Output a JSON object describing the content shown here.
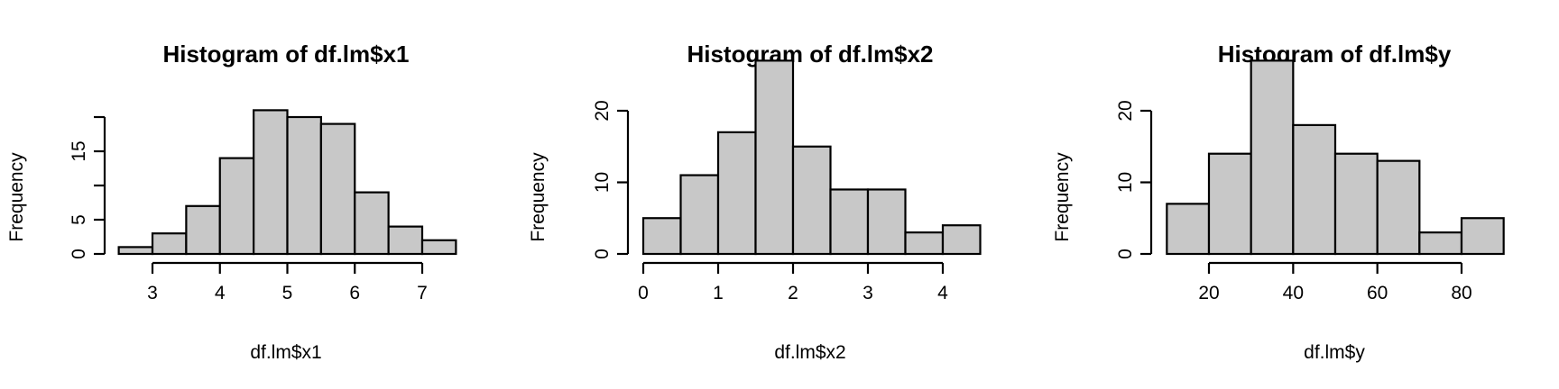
{
  "chart_data": [
    {
      "type": "bar",
      "title": "Histogram of df.lm$x1",
      "xlabel": "df.lm$x1",
      "ylabel": "Frequency",
      "bins": [
        {
          "from": 2.5,
          "to": 3.0,
          "count": 1
        },
        {
          "from": 3.0,
          "to": 3.5,
          "count": 3
        },
        {
          "from": 3.5,
          "to": 4.0,
          "count": 7
        },
        {
          "from": 4.0,
          "to": 4.5,
          "count": 14
        },
        {
          "from": 4.5,
          "to": 5.0,
          "count": 21
        },
        {
          "from": 5.0,
          "to": 5.5,
          "count": 20
        },
        {
          "from": 5.5,
          "to": 6.0,
          "count": 19
        },
        {
          "from": 6.0,
          "to": 6.5,
          "count": 9
        },
        {
          "from": 6.5,
          "to": 7.0,
          "count": 4
        },
        {
          "from": 7.0,
          "to": 7.5,
          "count": 2
        }
      ],
      "xticks": [
        3,
        4,
        5,
        6,
        7
      ],
      "xtick_labels": [
        "3",
        "4",
        "5",
        "6",
        "7"
      ],
      "yticks": [
        0,
        5,
        10,
        15,
        20
      ],
      "ytick_labels": [
        "0",
        "5",
        "",
        "15",
        ""
      ],
      "xlim": [
        2.5,
        7.5
      ],
      "ylim": [
        0,
        21
      ]
    },
    {
      "type": "bar",
      "title": "Histogram of df.lm$x2",
      "xlabel": "df.lm$x2",
      "ylabel": "Frequency",
      "bins": [
        {
          "from": 0.0,
          "to": 0.5,
          "count": 5
        },
        {
          "from": 0.5,
          "to": 1.0,
          "count": 11
        },
        {
          "from": 1.0,
          "to": 1.5,
          "count": 17
        },
        {
          "from": 1.5,
          "to": 2.0,
          "count": 27
        },
        {
          "from": 2.0,
          "to": 2.5,
          "count": 15
        },
        {
          "from": 2.5,
          "to": 3.0,
          "count": 9
        },
        {
          "from": 3.0,
          "to": 3.5,
          "count": 9
        },
        {
          "from": 3.5,
          "to": 4.0,
          "count": 3
        },
        {
          "from": 4.0,
          "to": 4.5,
          "count": 4
        }
      ],
      "xticks": [
        0,
        1,
        2,
        3,
        4
      ],
      "xtick_labels": [
        "0",
        "1",
        "2",
        "3",
        "4"
      ],
      "yticks": [
        0,
        10,
        20
      ],
      "ytick_labels": [
        "0",
        "10",
        "20"
      ],
      "xlim": [
        0,
        4.5
      ],
      "ylim": [
        0,
        27
      ]
    },
    {
      "type": "bar",
      "title": "Histogram of df.lm$y",
      "xlabel": "df.lm$y",
      "ylabel": "Frequency",
      "bins": [
        {
          "from": 10,
          "to": 20,
          "count": 7
        },
        {
          "from": 20,
          "to": 30,
          "count": 14
        },
        {
          "from": 30,
          "to": 40,
          "count": 27
        },
        {
          "from": 40,
          "to": 50,
          "count": 18
        },
        {
          "from": 50,
          "to": 60,
          "count": 14
        },
        {
          "from": 60,
          "to": 70,
          "count": 13
        },
        {
          "from": 70,
          "to": 80,
          "count": 3
        },
        {
          "from": 80,
          "to": 90,
          "count": 5
        }
      ],
      "xticks": [
        20,
        40,
        60,
        80
      ],
      "xtick_labels": [
        "20",
        "40",
        "60",
        "80"
      ],
      "yticks": [
        0,
        10,
        20
      ],
      "ytick_labels": [
        "0",
        "10",
        "20"
      ],
      "xlim": [
        10,
        90
      ],
      "ylim": [
        0,
        27
      ]
    }
  ]
}
